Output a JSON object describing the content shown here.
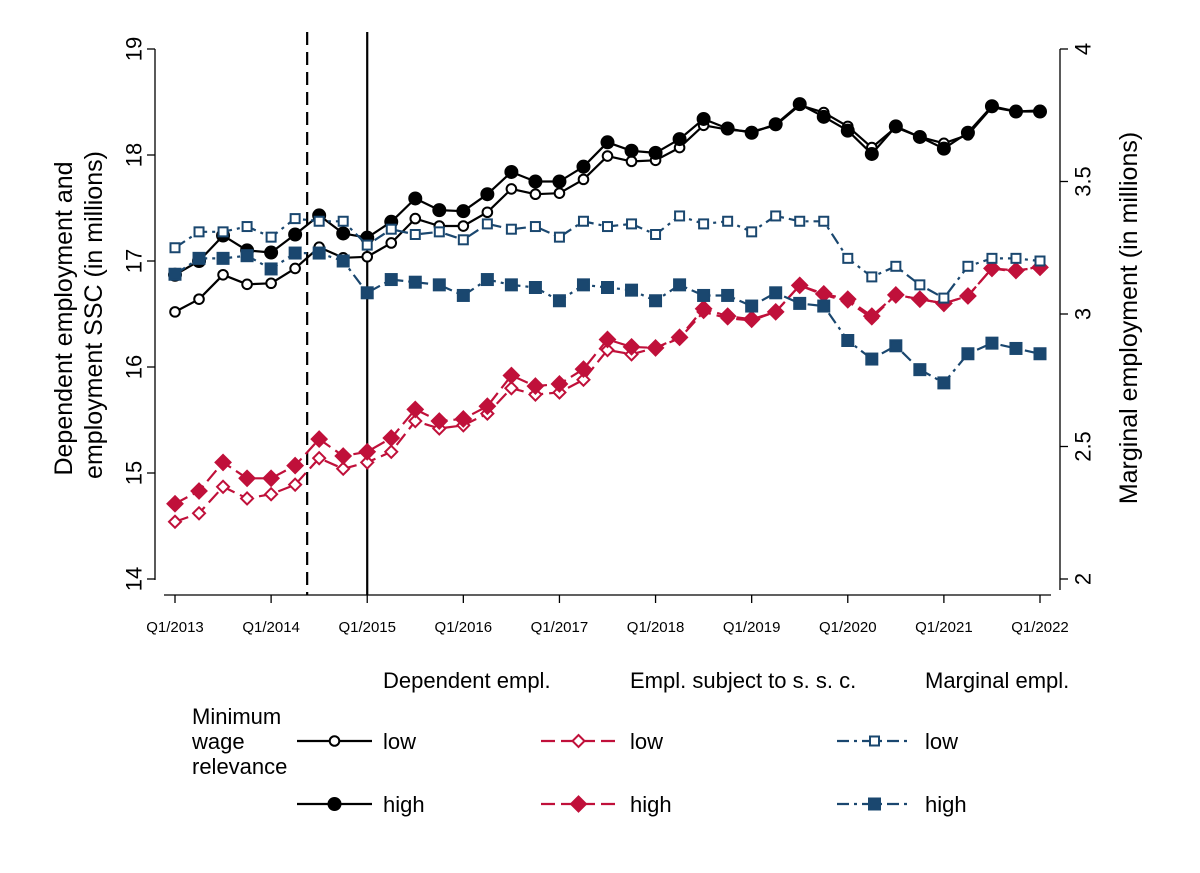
{
  "chart_data": {
    "type": "line",
    "ylabel_left": [
      "Dependent employment and",
      "employment SSC (in millions)"
    ],
    "ylabel_right": "Marginal employment (in millions)",
    "ylim_left": [
      14,
      19
    ],
    "ylim_right": [
      2,
      4
    ],
    "yticks_left": [
      "14",
      "15",
      "16",
      "17",
      "18",
      "19"
    ],
    "yticks_right": [
      "2",
      "2.5",
      "3",
      "3.5",
      "4"
    ],
    "xticks": [
      "Q1/2013",
      "Q1/2014",
      "Q1/2015",
      "Q1/2016",
      "Q1/2017",
      "Q1/2018",
      "Q1/2019",
      "Q1/2020",
      "Q1/2021",
      "Q1/2022"
    ],
    "x_quarters": 37,
    "vlines": [
      {
        "x": 5.5,
        "style": "dashed"
      },
      {
        "x": 8.0,
        "style": "solid"
      }
    ],
    "legend": {
      "headers": [
        "Dependent empl.",
        "Empl. subject to s. s. c.",
        "Marginal empl."
      ],
      "group_title": [
        "Minimum",
        "wage",
        "relevance"
      ],
      "low_label": "low",
      "high_label": "high"
    },
    "series": [
      {
        "name": "Dependent empl. - low",
        "axis": "left",
        "color": "#000000",
        "dash": "",
        "marker": "circle",
        "filled": false,
        "values": [
          16.52,
          16.64,
          16.87,
          16.78,
          16.79,
          16.93,
          17.13,
          17.03,
          17.04,
          17.17,
          17.4,
          17.33,
          17.33,
          17.46,
          17.68,
          17.63,
          17.64,
          17.77,
          17.99,
          17.94,
          17.95,
          18.07,
          18.28,
          18.24,
          18.22,
          18.28,
          18.47,
          18.4,
          18.27,
          18.07,
          18.26,
          18.17,
          18.11,
          18.19,
          18.45,
          18.41,
          18.42
        ]
      },
      {
        "name": "Dependent empl. - high",
        "axis": "left",
        "color": "#000000",
        "dash": "",
        "marker": "circle",
        "filled": true,
        "values": [
          16.87,
          17.0,
          17.24,
          17.1,
          17.08,
          17.25,
          17.43,
          17.26,
          17.22,
          17.37,
          17.59,
          17.48,
          17.47,
          17.63,
          17.84,
          17.75,
          17.75,
          17.89,
          18.12,
          18.04,
          18.02,
          18.15,
          18.34,
          18.25,
          18.21,
          18.29,
          18.48,
          18.36,
          18.23,
          18.01,
          18.27,
          18.17,
          18.06,
          18.21,
          18.46,
          18.41,
          18.41
        ]
      },
      {
        "name": "Empl. subject to s. s. c. - low",
        "axis": "left",
        "color": "#c0103a",
        "dash": "14,6",
        "marker": "diamond",
        "filled": false,
        "values": [
          14.54,
          14.62,
          14.87,
          14.76,
          14.8,
          14.89,
          15.14,
          15.04,
          15.1,
          15.2,
          15.49,
          15.42,
          15.45,
          15.56,
          15.8,
          15.74,
          15.76,
          15.88,
          16.16,
          16.12,
          16.18,
          16.27,
          16.52,
          16.46,
          16.44,
          16.52,
          16.77,
          16.68,
          16.62,
          16.46,
          16.68,
          16.64,
          16.6,
          16.67,
          16.93,
          16.9,
          16.95
        ]
      },
      {
        "name": "Empl. subject to s. s. c. - high",
        "axis": "left",
        "color": "#c0103a",
        "dash": "14,6",
        "marker": "diamond",
        "filled": true,
        "values": [
          14.71,
          14.83,
          15.1,
          14.95,
          14.95,
          15.07,
          15.32,
          15.16,
          15.2,
          15.33,
          15.6,
          15.49,
          15.51,
          15.63,
          15.92,
          15.82,
          15.84,
          15.98,
          16.26,
          16.19,
          16.18,
          16.28,
          16.55,
          16.48,
          16.45,
          16.52,
          16.77,
          16.69,
          16.64,
          16.48,
          16.68,
          16.64,
          16.6,
          16.67,
          16.93,
          16.91,
          16.94
        ]
      },
      {
        "name": "Marginal empl. - low",
        "axis": "right",
        "color": "#1a476f",
        "dash": "12,5,3,5",
        "marker": "square",
        "filled": false,
        "values": [
          3.25,
          3.31,
          3.31,
          3.33,
          3.29,
          3.36,
          3.35,
          3.35,
          3.26,
          3.32,
          3.3,
          3.31,
          3.28,
          3.34,
          3.32,
          3.33,
          3.29,
          3.35,
          3.33,
          3.34,
          3.3,
          3.37,
          3.34,
          3.35,
          3.31,
          3.37,
          3.35,
          3.35,
          3.21,
          3.14,
          3.18,
          3.11,
          3.06,
          3.18,
          3.21,
          3.21,
          3.2
        ]
      },
      {
        "name": "Marginal empl. - high",
        "axis": "right",
        "color": "#1a476f",
        "dash": "12,5,3,5",
        "marker": "square",
        "filled": true,
        "values": [
          3.15,
          3.21,
          3.21,
          3.22,
          3.17,
          3.23,
          3.23,
          3.2,
          3.08,
          3.13,
          3.12,
          3.11,
          3.07,
          3.13,
          3.11,
          3.1,
          3.05,
          3.11,
          3.1,
          3.09,
          3.05,
          3.11,
          3.07,
          3.07,
          3.03,
          3.08,
          3.04,
          3.03,
          2.9,
          2.83,
          2.88,
          2.79,
          2.74,
          2.85,
          2.89,
          2.87,
          2.85
        ]
      }
    ]
  }
}
